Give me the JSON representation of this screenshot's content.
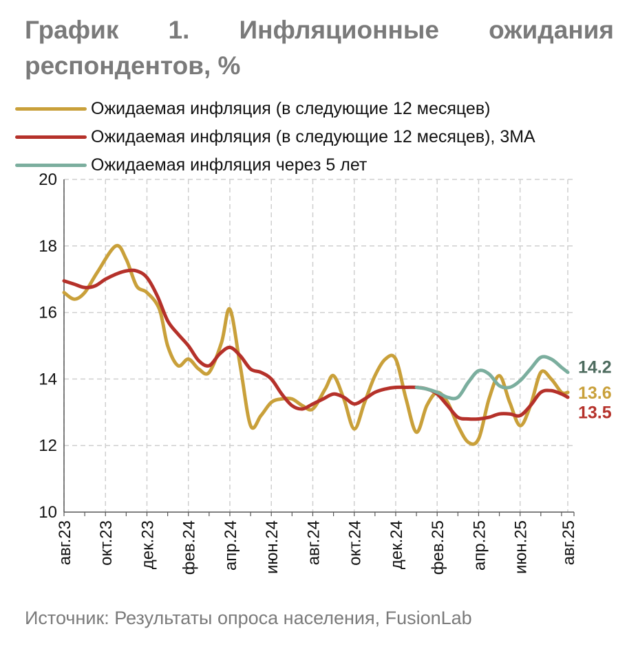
{
  "header": {
    "title_line1": "График 1. Инфляционные ожидания",
    "title_line2": "респондентов, %"
  },
  "source": "Источник: Результаты опроса населения, FusionLab",
  "chart_data": {
    "type": "line",
    "title": "График 1. Инфляционные ожидания респондентов, %",
    "ylim": [
      10,
      20
    ],
    "yticks": [
      10,
      12,
      14,
      16,
      18,
      20
    ],
    "xlim": [
      0,
      24.6
    ],
    "grid": true,
    "legend_position": "top-left",
    "categories": [
      "авг.23",
      "окт.23",
      "дек.23",
      "фев.24",
      "апр.24",
      "июн.24",
      "авг.24",
      "окт.24",
      "дек.24",
      "фев.25",
      "апр.25",
      "июн.25",
      "авг.25"
    ],
    "category_positions": [
      0,
      2,
      4,
      6,
      8,
      10,
      12,
      14,
      16,
      18,
      20,
      22,
      24.3
    ],
    "series": [
      {
        "name": "Ожидаемая инфляция (в следующие 12 месяцев)",
        "color": "#C9A03A",
        "x": [
          0,
          0.5,
          1,
          1.6,
          2.5,
          3,
          3.5,
          4,
          4.6,
          5,
          5.5,
          6,
          6.5,
          7,
          7.6,
          8,
          8.5,
          9,
          9.5,
          10,
          10.5,
          11,
          11.5,
          12,
          12.6,
          13,
          13.5,
          14,
          14.5,
          15,
          15.5,
          16,
          16.5,
          17,
          17.5,
          18,
          18.5,
          19,
          19.5,
          20,
          20.5,
          21,
          21.5,
          22,
          22.5,
          23,
          23.5,
          24,
          24.3
        ],
        "y": [
          16.6,
          16.4,
          16.6,
          17.2,
          18.0,
          17.6,
          16.8,
          16.6,
          16.1,
          15.0,
          14.4,
          14.6,
          14.3,
          14.2,
          15.1,
          16.1,
          14.4,
          12.6,
          12.9,
          13.3,
          13.4,
          13.4,
          13.2,
          13.1,
          13.7,
          14.1,
          13.4,
          12.5,
          13.3,
          14.1,
          14.6,
          14.6,
          13.4,
          12.4,
          13.2,
          13.6,
          13.3,
          12.6,
          12.1,
          12.2,
          13.4,
          14.1,
          13.3,
          12.6,
          13.2,
          14.2,
          14.0,
          13.6,
          13.6
        ]
      },
      {
        "name": "Ожидаемая инфляция (в следующие 12 месяцев), 3МА",
        "color": "#B5312A",
        "x": [
          0,
          0.5,
          1,
          1.5,
          2,
          2.5,
          3,
          3.5,
          4,
          4.5,
          5,
          5.5,
          6,
          6.5,
          7,
          7.5,
          8,
          8.5,
          9,
          9.5,
          10,
          10.5,
          11,
          11.5,
          12,
          12.5,
          13,
          13.5,
          14,
          14.5,
          15,
          15.5,
          16,
          16.5,
          17,
          17.5,
          18,
          18.5,
          19,
          19.5,
          20,
          20.5,
          21,
          21.5,
          22,
          22.5,
          23,
          23.5,
          24,
          24.3
        ],
        "y": [
          16.95,
          16.85,
          16.75,
          16.8,
          17.0,
          17.15,
          17.25,
          17.25,
          17.05,
          16.5,
          15.75,
          15.35,
          15.0,
          14.55,
          14.4,
          14.75,
          14.95,
          14.7,
          14.3,
          14.2,
          14.0,
          13.55,
          13.2,
          13.1,
          13.25,
          13.4,
          13.55,
          13.45,
          13.25,
          13.4,
          13.6,
          13.7,
          13.75,
          13.75,
          13.75,
          13.7,
          13.55,
          13.2,
          12.85,
          12.8,
          12.8,
          12.85,
          12.95,
          12.95,
          12.9,
          13.2,
          13.6,
          13.65,
          13.55,
          13.45
        ]
      },
      {
        "name": "Ожидаемая инфляция через 5 лет",
        "color": "#7BAE9E",
        "x": [
          17,
          17.5,
          18,
          18.5,
          19,
          19.5,
          20,
          20.5,
          21,
          21.5,
          22,
          22.5,
          23,
          23.5,
          24,
          24.3
        ],
        "y": [
          13.75,
          13.7,
          13.6,
          13.45,
          13.45,
          13.9,
          14.25,
          14.15,
          13.8,
          13.75,
          13.95,
          14.3,
          14.65,
          14.6,
          14.35,
          14.2
        ]
      }
    ],
    "end_labels": [
      {
        "text": "14.2",
        "value": 14.2,
        "color": "#4D6B5E"
      },
      {
        "text": "13.6",
        "value": 13.6,
        "color": "#C9A03A"
      },
      {
        "text": "13.5",
        "value": 13.5,
        "color": "#B5312A"
      }
    ]
  }
}
